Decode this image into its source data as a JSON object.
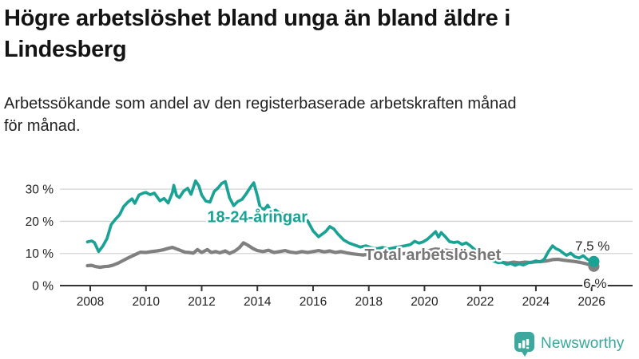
{
  "header": {
    "title": "Högre arbetslöshet bland unga än bland äldre i\nLindesberg",
    "subtitle": "Arbetssökande som andel av den registerbaserade arbetskraften månad\nför månad."
  },
  "chart_data": {
    "type": "line",
    "title": "Högre arbetslöshet bland unga än bland äldre i Lindesberg",
    "subtitle": "Arbetssökande som andel av den registerbaserade arbetskraften månad för månad.",
    "xlabel": "",
    "ylabel": "",
    "grid": "horizontal",
    "legend_position": "inline-labels",
    "xlim": [
      2007.85,
      2026.4
    ],
    "ylim": [
      0,
      34
    ],
    "x_ticks": [
      2008,
      2010,
      2012,
      2014,
      2016,
      2018,
      2020,
      2022,
      2024,
      2026
    ],
    "y_ticks": [
      0,
      10,
      20,
      30
    ],
    "y_tick_suffix": " %",
    "axis_color": "#333333",
    "grid_color": "#d4d4d4",
    "tick_label_color": "#222222",
    "end_label_color": "#2b2b2b",
    "series": [
      {
        "name": "Total arbetslöshet",
        "color": "#808080",
        "label_color": "#767676",
        "label_pos": [
          2020.3,
          9.4
        ],
        "end_label": "6 %",
        "end_label_offset": [
          16,
          27
        ],
        "line_width": 4.2,
        "points": [
          [
            2007.9,
            6.2
          ],
          [
            2008.05,
            6.3
          ],
          [
            2008.2,
            5.9
          ],
          [
            2008.35,
            5.7
          ],
          [
            2008.5,
            5.9
          ],
          [
            2008.65,
            6.0
          ],
          [
            2008.8,
            6.3
          ],
          [
            2009.0,
            7.0
          ],
          [
            2009.2,
            7.9
          ],
          [
            2009.4,
            8.8
          ],
          [
            2009.6,
            9.6
          ],
          [
            2009.8,
            10.4
          ],
          [
            2010.0,
            10.3
          ],
          [
            2010.2,
            10.6
          ],
          [
            2010.4,
            10.8
          ],
          [
            2010.6,
            11.1
          ],
          [
            2010.8,
            11.6
          ],
          [
            2010.95,
            11.9
          ],
          [
            2011.1,
            11.4
          ],
          [
            2011.25,
            10.9
          ],
          [
            2011.4,
            10.4
          ],
          [
            2011.55,
            10.3
          ],
          [
            2011.7,
            10.1
          ],
          [
            2011.85,
            11.2
          ],
          [
            2012.0,
            10.3
          ],
          [
            2012.2,
            11.2
          ],
          [
            2012.35,
            10.3
          ],
          [
            2012.5,
            10.6
          ],
          [
            2012.65,
            10.2
          ],
          [
            2012.85,
            10.8
          ],
          [
            2013.0,
            10.0
          ],
          [
            2013.2,
            10.8
          ],
          [
            2013.35,
            11.8
          ],
          [
            2013.5,
            13.3
          ],
          [
            2013.65,
            12.6
          ],
          [
            2013.85,
            11.5
          ],
          [
            2014.0,
            10.9
          ],
          [
            2014.2,
            10.6
          ],
          [
            2014.4,
            11.0
          ],
          [
            2014.6,
            10.3
          ],
          [
            2014.8,
            10.6
          ],
          [
            2015.0,
            10.9
          ],
          [
            2015.2,
            10.4
          ],
          [
            2015.4,
            10.2
          ],
          [
            2015.6,
            10.6
          ],
          [
            2015.8,
            10.3
          ],
          [
            2016.0,
            10.6
          ],
          [
            2016.2,
            10.9
          ],
          [
            2016.4,
            10.5
          ],
          [
            2016.6,
            10.8
          ],
          [
            2016.8,
            10.3
          ],
          [
            2017.0,
            10.6
          ],
          [
            2017.2,
            10.2
          ],
          [
            2017.4,
            9.9
          ],
          [
            2017.6,
            9.7
          ],
          [
            2017.8,
            9.5
          ],
          [
            2018.0,
            9.8
          ],
          [
            2018.2,
            9.5
          ],
          [
            2018.4,
            9.3
          ],
          [
            2018.6,
            9.6
          ],
          [
            2018.8,
            9.4
          ],
          [
            2019.0,
            9.7
          ],
          [
            2019.2,
            9.9
          ],
          [
            2019.4,
            10.1
          ],
          [
            2019.6,
            9.9
          ],
          [
            2019.8,
            10.2
          ],
          [
            2020.0,
            10.5
          ],
          [
            2020.2,
            11.0
          ],
          [
            2020.4,
            11.4
          ],
          [
            2020.6,
            11.2
          ],
          [
            2020.8,
            11.0
          ],
          [
            2021.0,
            10.8
          ],
          [
            2021.2,
            10.5
          ],
          [
            2021.4,
            10.2
          ],
          [
            2021.6,
            9.9
          ],
          [
            2021.8,
            9.4
          ],
          [
            2022.0,
            8.9
          ],
          [
            2022.2,
            8.4
          ],
          [
            2022.4,
            8.0
          ],
          [
            2022.6,
            7.7
          ],
          [
            2022.8,
            7.2
          ],
          [
            2023.0,
            7.0
          ],
          [
            2023.2,
            7.3
          ],
          [
            2023.4,
            7.1
          ],
          [
            2023.6,
            7.3
          ],
          [
            2023.8,
            7.2
          ],
          [
            2024.0,
            7.4
          ],
          [
            2024.2,
            7.5
          ],
          [
            2024.4,
            7.7
          ],
          [
            2024.6,
            8.1
          ],
          [
            2024.8,
            8.2
          ],
          [
            2025.0,
            7.9
          ],
          [
            2025.2,
            7.7
          ],
          [
            2025.4,
            7.5
          ],
          [
            2025.6,
            7.2
          ],
          [
            2025.8,
            6.8
          ],
          [
            2025.95,
            6.4
          ],
          [
            2026.08,
            6.0
          ]
        ]
      },
      {
        "name": "18-24-åringar",
        "color": "#1aa394",
        "label_color": "#1aa394",
        "label_pos": [
          2014.0,
          21.2
        ],
        "end_label": "7,5 %",
        "end_label_offset": [
          20,
          -14
        ],
        "line_width": 3.7,
        "points": [
          [
            2007.9,
            13.6
          ],
          [
            2008.05,
            13.9
          ],
          [
            2008.15,
            13.4
          ],
          [
            2008.3,
            10.6
          ],
          [
            2008.45,
            12.3
          ],
          [
            2008.6,
            14.6
          ],
          [
            2008.75,
            19.0
          ],
          [
            2008.9,
            20.6
          ],
          [
            2009.05,
            22.0
          ],
          [
            2009.2,
            24.6
          ],
          [
            2009.35,
            26.0
          ],
          [
            2009.5,
            27.0
          ],
          [
            2009.6,
            25.6
          ],
          [
            2009.75,
            28.2
          ],
          [
            2009.9,
            28.8
          ],
          [
            2010.0,
            29.0
          ],
          [
            2010.15,
            28.3
          ],
          [
            2010.3,
            28.8
          ],
          [
            2010.5,
            26.4
          ],
          [
            2010.65,
            27.1
          ],
          [
            2010.8,
            25.7
          ],
          [
            2010.95,
            29.0
          ],
          [
            2011.0,
            31.2
          ],
          [
            2011.1,
            28.0
          ],
          [
            2011.2,
            27.4
          ],
          [
            2011.35,
            29.4
          ],
          [
            2011.5,
            30.3
          ],
          [
            2011.62,
            28.4
          ],
          [
            2011.78,
            32.6
          ],
          [
            2011.9,
            31.0
          ],
          [
            2012.0,
            28.2
          ],
          [
            2012.15,
            26.3
          ],
          [
            2012.3,
            26.0
          ],
          [
            2012.45,
            29.3
          ],
          [
            2012.6,
            30.5
          ],
          [
            2012.72,
            31.8
          ],
          [
            2012.85,
            32.4
          ],
          [
            2013.0,
            27.3
          ],
          [
            2013.15,
            24.9
          ],
          [
            2013.3,
            26.2
          ],
          [
            2013.45,
            26.8
          ],
          [
            2013.6,
            28.6
          ],
          [
            2013.75,
            30.6
          ],
          [
            2013.87,
            32.0
          ],
          [
            2014.0,
            28.0
          ],
          [
            2014.1,
            24.3
          ],
          [
            2014.25,
            23.7
          ],
          [
            2014.37,
            25.0
          ],
          [
            2014.5,
            23.0
          ],
          [
            2014.65,
            23.5
          ],
          [
            2014.8,
            22.6
          ],
          [
            2015.0,
            22.2
          ],
          [
            2015.2,
            21.0
          ],
          [
            2015.4,
            20.3
          ],
          [
            2015.6,
            19.6
          ],
          [
            2015.8,
            20.2
          ],
          [
            2016.0,
            17.0
          ],
          [
            2016.2,
            15.2
          ],
          [
            2016.45,
            16.8
          ],
          [
            2016.6,
            18.4
          ],
          [
            2016.75,
            17.6
          ],
          [
            2016.9,
            16.0
          ],
          [
            2017.1,
            14.2
          ],
          [
            2017.3,
            13.2
          ],
          [
            2017.5,
            12.6
          ],
          [
            2017.7,
            12.0
          ],
          [
            2017.9,
            12.4
          ],
          [
            2018.1,
            11.8
          ],
          [
            2018.3,
            11.5
          ],
          [
            2018.5,
            11.9
          ],
          [
            2018.7,
            11.4
          ],
          [
            2018.9,
            11.8
          ],
          [
            2019.1,
            12.1
          ],
          [
            2019.3,
            12.4
          ],
          [
            2019.5,
            12.8
          ],
          [
            2019.65,
            13.8
          ],
          [
            2019.8,
            13.2
          ],
          [
            2019.95,
            13.6
          ],
          [
            2020.1,
            14.4
          ],
          [
            2020.25,
            15.6
          ],
          [
            2020.4,
            16.8
          ],
          [
            2020.5,
            15.1
          ],
          [
            2020.6,
            16.5
          ],
          [
            2020.75,
            15.2
          ],
          [
            2020.9,
            13.7
          ],
          [
            2021.05,
            13.4
          ],
          [
            2021.2,
            13.6
          ],
          [
            2021.35,
            12.8
          ],
          [
            2021.5,
            13.3
          ],
          [
            2021.65,
            12.4
          ],
          [
            2021.8,
            11.2
          ],
          [
            2021.95,
            10.2
          ],
          [
            2022.1,
            9.0
          ],
          [
            2022.3,
            8.2
          ],
          [
            2022.5,
            7.6
          ],
          [
            2022.65,
            7.1
          ],
          [
            2022.8,
            7.3
          ],
          [
            2022.95,
            6.6
          ],
          [
            2023.1,
            6.9
          ],
          [
            2023.25,
            6.3
          ],
          [
            2023.4,
            6.8
          ],
          [
            2023.55,
            6.4
          ],
          [
            2023.7,
            7.0
          ],
          [
            2023.85,
            7.3
          ],
          [
            2024.0,
            7.7
          ],
          [
            2024.15,
            7.4
          ],
          [
            2024.3,
            8.2
          ],
          [
            2024.45,
            10.6
          ],
          [
            2024.6,
            12.4
          ],
          [
            2024.72,
            11.5
          ],
          [
            2024.85,
            11.0
          ],
          [
            2025.0,
            10.0
          ],
          [
            2025.1,
            9.4
          ],
          [
            2025.25,
            10.1
          ],
          [
            2025.4,
            9.0
          ],
          [
            2025.55,
            8.6
          ],
          [
            2025.7,
            9.3
          ],
          [
            2025.85,
            8.2
          ],
          [
            2025.95,
            7.8
          ],
          [
            2026.08,
            7.5
          ]
        ]
      }
    ]
  },
  "footer": {
    "brand": "Newsworthy",
    "brand_color": "#3aa79c",
    "logo_icon": "newsworthy-bar-chart-bubble"
  }
}
